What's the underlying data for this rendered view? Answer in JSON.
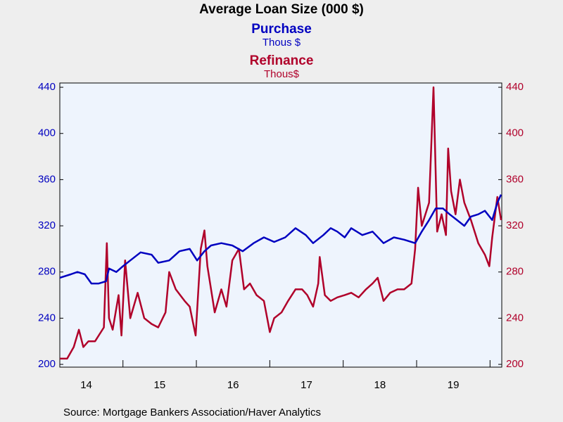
{
  "chart_data": {
    "type": "line",
    "title": "Average Loan Size (000 $)",
    "source": "Source:  Mortgage Bankers Association/Haver Analytics",
    "xlim": [
      2014.14,
      2020.16
    ],
    "xticks": [
      {
        "value": 2014.5,
        "label": "14"
      },
      {
        "value": 2015.5,
        "label": "15"
      },
      {
        "value": 2016.5,
        "label": "16"
      },
      {
        "value": 2017.5,
        "label": "17"
      },
      {
        "value": 2018.5,
        "label": "18"
      },
      {
        "value": 2019.5,
        "label": "19"
      }
    ],
    "xminorticks": [
      2015,
      2016,
      2017,
      2018,
      2019,
      2020
    ],
    "ylim": [
      197.6,
      443.7
    ],
    "yticks": [
      200,
      240,
      280,
      320,
      360,
      400,
      440
    ],
    "y2lim": [
      197.6,
      443.7
    ],
    "y2ticks": [
      200,
      240,
      280,
      320,
      360,
      400,
      440
    ],
    "series": [
      {
        "name": "Purchase",
        "unit": "Thous $",
        "color": "#0000c0",
        "x": [
          2014.14,
          2014.29,
          2014.38,
          2014.48,
          2014.57,
          2014.67,
          2014.77,
          2014.81,
          2014.91,
          2015.0,
          2015.1,
          2015.24,
          2015.39,
          2015.48,
          2015.63,
          2015.77,
          2015.91,
          2016.01,
          2016.11,
          2016.2,
          2016.34,
          2016.49,
          2016.63,
          2016.78,
          2016.92,
          2017.06,
          2017.21,
          2017.35,
          2017.49,
          2017.59,
          2017.73,
          2017.83,
          2017.92,
          2018.02,
          2018.11,
          2018.26,
          2018.4,
          2018.55,
          2018.69,
          2018.83,
          2018.98,
          2019.07,
          2019.17,
          2019.26,
          2019.36,
          2019.45,
          2019.55,
          2019.65,
          2019.74,
          2019.84,
          2019.93,
          2020.03,
          2020.1,
          2020.15
        ],
        "values": [
          275,
          278,
          280,
          278,
          270,
          270,
          272,
          283,
          280,
          285,
          290,
          297,
          295,
          288,
          290,
          298,
          300,
          290,
          298,
          303,
          305,
          303,
          298,
          305,
          310,
          306,
          310,
          318,
          312,
          305,
          312,
          318,
          315,
          310,
          318,
          312,
          315,
          305,
          310,
          308,
          305,
          315,
          325,
          335,
          335,
          330,
          325,
          320,
          328,
          330,
          333,
          325,
          340,
          347
        ]
      },
      {
        "name": "Refinance",
        "unit": "Thous$",
        "color": "#b0002a",
        "axis": "y2",
        "x": [
          2014.14,
          2014.24,
          2014.33,
          2014.4,
          2014.46,
          2014.53,
          2014.62,
          2014.67,
          2014.74,
          2014.78,
          2014.81,
          2014.86,
          2014.94,
          2014.98,
          2015.03,
          2015.1,
          2015.2,
          2015.29,
          2015.39,
          2015.48,
          2015.58,
          2015.63,
          2015.72,
          2015.84,
          2015.91,
          2015.99,
          2016.06,
          2016.11,
          2016.15,
          2016.25,
          2016.34,
          2016.41,
          2016.49,
          2016.58,
          2016.65,
          2016.73,
          2016.82,
          2016.92,
          2017.0,
          2017.06,
          2017.16,
          2017.25,
          2017.35,
          2017.44,
          2017.51,
          2017.59,
          2017.66,
          2017.68,
          2017.75,
          2017.83,
          2017.92,
          2018.02,
          2018.11,
          2018.21,
          2018.31,
          2018.4,
          2018.47,
          2018.55,
          2018.64,
          2018.74,
          2018.83,
          2018.93,
          2018.98,
          2019.02,
          2019.07,
          2019.17,
          2019.23,
          2019.28,
          2019.34,
          2019.4,
          2019.43,
          2019.47,
          2019.53,
          2019.59,
          2019.65,
          2019.74,
          2019.84,
          2019.93,
          2019.99,
          2020.03,
          2020.1,
          2020.15
        ],
        "values": [
          205,
          205,
          215,
          230,
          215,
          220,
          220,
          225,
          232,
          305,
          240,
          230,
          260,
          225,
          290,
          240,
          262,
          240,
          235,
          232,
          245,
          280,
          265,
          255,
          250,
          225,
          300,
          316,
          285,
          245,
          265,
          250,
          290,
          300,
          265,
          270,
          260,
          255,
          228,
          240,
          245,
          255,
          265,
          265,
          260,
          250,
          270,
          293,
          260,
          255,
          258,
          260,
          262,
          258,
          265,
          270,
          275,
          255,
          262,
          265,
          265,
          270,
          300,
          353,
          320,
          340,
          440,
          315,
          330,
          312,
          387,
          350,
          330,
          360,
          340,
          325,
          305,
          295,
          285,
          310,
          345,
          325
        ]
      }
    ]
  }
}
